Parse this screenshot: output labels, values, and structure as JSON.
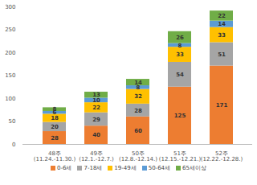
{
  "chart_data": {
    "type": "bar",
    "stacked": true,
    "data_labels": true,
    "grid": false,
    "legend": "bottom",
    "categories": [
      "48주\n(11.24.-11.30.)",
      "49주\n(12.1.-12.7.)",
      "50주\n(12.8.-12.14.)",
      "51주\n(12.15.-12.21.)",
      "52주\n(12.22.-12.28.)"
    ],
    "series": [
      {
        "name": "0-6세",
        "color": "#ED7D31",
        "values": [
          28,
          40,
          60,
          125,
          171
        ]
      },
      {
        "name": "7-18세",
        "color": "#A5A5A5",
        "values": [
          20,
          29,
          28,
          54,
          51
        ]
      },
      {
        "name": "19-49세",
        "color": "#FFC000",
        "values": [
          18,
          22,
          32,
          33,
          33
        ]
      },
      {
        "name": "50-64세",
        "color": "#5B9BD5",
        "values": [
          6,
          10,
          8,
          8,
          14
        ]
      },
      {
        "name": "65세이상",
        "color": "#70AD47",
        "values": [
          8,
          13,
          14,
          26,
          22
        ]
      }
    ],
    "ylim": [
      0,
      300
    ],
    "yticks": [
      0,
      50,
      100,
      150,
      200,
      250,
      300
    ]
  }
}
